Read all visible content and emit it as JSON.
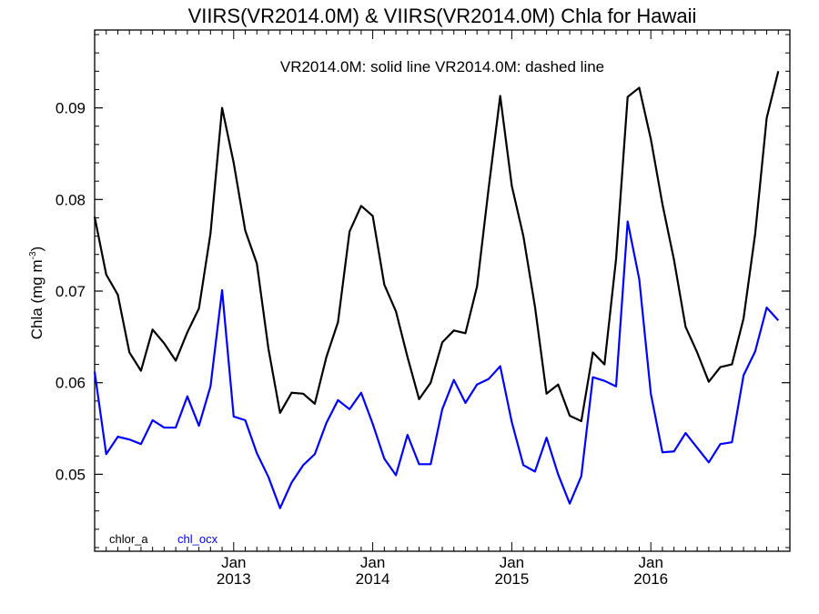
{
  "chart_data": {
    "type": "line",
    "title": "VIIRS(VR2014.0M) & VIIRS(VR2014.0M)  Chla for Hawaii",
    "subtitle": "VR2014.0M: solid line   VR2014.0M: dashed line",
    "ylabel": "Chla (mg m",
    "ylabel_superscript": "-3",
    "ylabel_close": ")",
    "xlabel": "",
    "ylim": [
      0.0416,
      0.0985
    ],
    "x_axis": {
      "type": "date",
      "start": "2012-01",
      "end": "2017-01",
      "tick_months": [
        "2013-01",
        "2014-01",
        "2015-01",
        "2016-01"
      ]
    },
    "x_tick_labels": [
      {
        "month": "Jan",
        "year": "2013"
      },
      {
        "month": "Jan",
        "year": "2014"
      },
      {
        "month": "Jan",
        "year": "2015"
      },
      {
        "month": "Jan",
        "year": "2016"
      }
    ],
    "y_ticks": [
      0.05,
      0.06,
      0.07,
      0.08,
      0.09
    ],
    "y_tick_labels": [
      "0.05",
      "0.06",
      "0.07",
      "0.08",
      "0.09"
    ],
    "grid": false,
    "legend_position": "bottom-left",
    "x": [
      "2012-01",
      "2012-02",
      "2012-03",
      "2012-04",
      "2012-05",
      "2012-06",
      "2012-07",
      "2012-08",
      "2012-09",
      "2012-10",
      "2012-11",
      "2012-12",
      "2013-01",
      "2013-02",
      "2013-03",
      "2013-04",
      "2013-05",
      "2013-06",
      "2013-07",
      "2013-08",
      "2013-09",
      "2013-10",
      "2013-11",
      "2013-12",
      "2014-01",
      "2014-02",
      "2014-03",
      "2014-04",
      "2014-05",
      "2014-06",
      "2014-07",
      "2014-08",
      "2014-09",
      "2014-10",
      "2014-11",
      "2014-12",
      "2015-01",
      "2015-02",
      "2015-03",
      "2015-04",
      "2015-05",
      "2015-06",
      "2015-07",
      "2015-08",
      "2015-09",
      "2015-10",
      "2015-11",
      "2015-12",
      "2016-01",
      "2016-02",
      "2016-03",
      "2016-04",
      "2016-05",
      "2016-06",
      "2016-07",
      "2016-08",
      "2016-09",
      "2016-10",
      "2016-11",
      "2016-12"
    ],
    "series": [
      {
        "name": "chlor_a",
        "color": "#000000",
        "values": [
          0.0781,
          0.0718,
          0.0696,
          0.0633,
          0.0613,
          0.0658,
          0.0643,
          0.0624,
          0.0655,
          0.0681,
          0.0763,
          0.09,
          0.084,
          0.0766,
          0.073,
          0.0637,
          0.0567,
          0.0589,
          0.0588,
          0.0577,
          0.0628,
          0.0666,
          0.0765,
          0.0793,
          0.0782,
          0.0707,
          0.0678,
          0.0628,
          0.0582,
          0.06,
          0.0644,
          0.0657,
          0.0654,
          0.0705,
          0.0812,
          0.0913,
          0.0815,
          0.076,
          0.0683,
          0.0588,
          0.0598,
          0.0564,
          0.0558,
          0.0633,
          0.062,
          0.0735,
          0.0912,
          0.0922,
          0.0866,
          0.0795,
          0.0734,
          0.0661,
          0.0633,
          0.0601,
          0.0617,
          0.062,
          0.067,
          0.0762,
          0.0889,
          0.094
        ]
      },
      {
        "name": "chl_ocx",
        "color": "#0000ff",
        "values": [
          0.0612,
          0.0522,
          0.0541,
          0.0538,
          0.0533,
          0.0559,
          0.0551,
          0.0551,
          0.0585,
          0.0553,
          0.0596,
          0.0701,
          0.0563,
          0.0559,
          0.0523,
          0.0497,
          0.0463,
          0.0491,
          0.051,
          0.0522,
          0.0556,
          0.0581,
          0.0571,
          0.0589,
          0.0555,
          0.0517,
          0.0499,
          0.0543,
          0.0511,
          0.0511,
          0.0571,
          0.0603,
          0.0578,
          0.0598,
          0.0604,
          0.0618,
          0.0557,
          0.051,
          0.0503,
          0.054,
          0.05,
          0.0468,
          0.0498,
          0.0606,
          0.0602,
          0.0596,
          0.0776,
          0.0713,
          0.0588,
          0.0524,
          0.0525,
          0.0545,
          0.0529,
          0.0513,
          0.0533,
          0.0535,
          0.0608,
          0.0634,
          0.0682,
          0.0668
        ]
      }
    ]
  }
}
